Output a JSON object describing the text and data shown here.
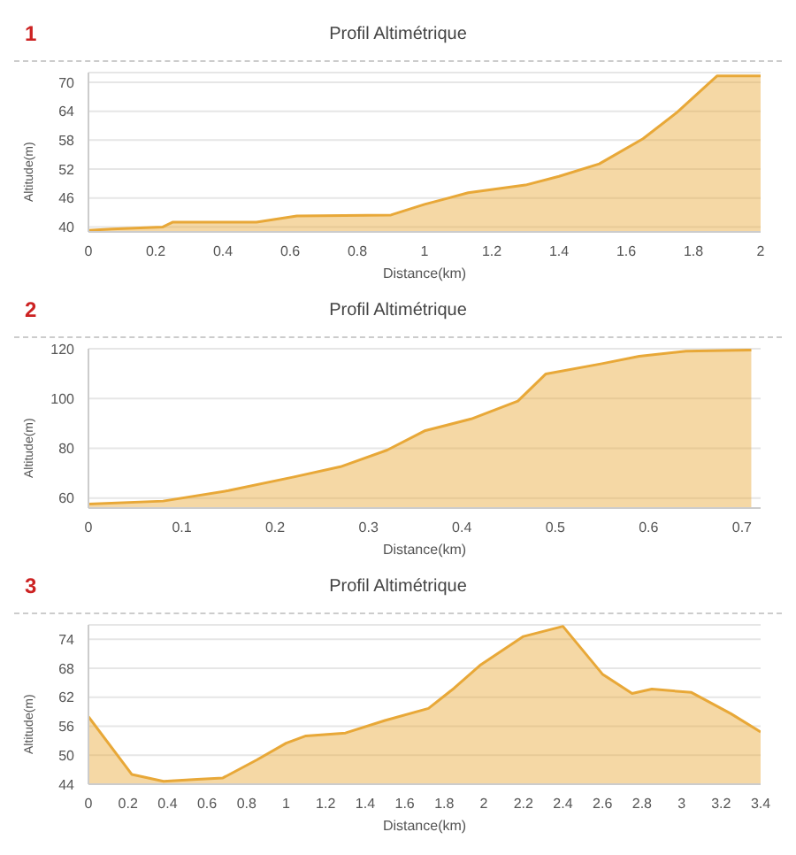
{
  "chart_data": [
    {
      "type": "area",
      "title": "Profil Altimétrique",
      "annotations": [
        "1"
      ],
      "xlabel": "Distance(km)",
      "ylabel": "Altitude(m)",
      "color": "#e8a838",
      "grid": "y",
      "marker": "none",
      "x": [
        0,
        0.07,
        0.22,
        0.25,
        0.5,
        0.62,
        0.9,
        1.0,
        1.13,
        1.3,
        1.4,
        1.52,
        1.65,
        1.75,
        1.87,
        2.0
      ],
      "values": [
        39.3,
        39.6,
        40,
        41,
        41,
        42.3,
        42.5,
        44.7,
        47.1,
        48.7,
        50.5,
        53.1,
        58.3,
        63.7,
        71.3,
        71.3
      ],
      "xlim": [
        0,
        2
      ],
      "xticks": [
        0,
        0.2,
        0.4,
        0.6,
        0.8,
        1,
        1.2,
        1.4,
        1.6,
        1.8,
        2
      ],
      "ylim": [
        39,
        72
      ],
      "yticks": [
        40,
        46,
        52,
        58,
        64,
        70
      ]
    },
    {
      "type": "area",
      "title": "Profil Altimétrique",
      "annotations": [
        "2"
      ],
      "xlabel": "Distance(km)",
      "ylabel": "Altitude(m)",
      "color": "#e8a838",
      "grid": "y",
      "marker": "none",
      "x": [
        0,
        0.08,
        0.15,
        0.22,
        0.27,
        0.32,
        0.36,
        0.41,
        0.46,
        0.49,
        0.55,
        0.59,
        0.64,
        0.71
      ],
      "values": [
        57.6,
        58.8,
        63,
        68.5,
        72.6,
        79.3,
        87,
        91.8,
        99,
        109.9,
        114,
        117,
        119,
        119.5
      ],
      "xlim": [
        0,
        0.72
      ],
      "xticks": [
        0,
        0.1,
        0.2,
        0.3,
        0.4,
        0.5,
        0.6,
        0.7
      ],
      "ylim": [
        56,
        120
      ],
      "yticks": [
        60,
        80,
        100,
        120
      ]
    },
    {
      "type": "area",
      "title": "Profil Altimétrique",
      "annotations": [
        "3"
      ],
      "xlabel": "Distance(km)",
      "ylabel": "Altitude(m)",
      "color": "#e8a838",
      "grid": "y",
      "marker": "none",
      "x": [
        0,
        0.22,
        0.38,
        0.55,
        0.68,
        0.85,
        1.0,
        1.1,
        1.3,
        1.5,
        1.72,
        1.85,
        1.98,
        2.2,
        2.4,
        2.6,
        2.75,
        2.85,
        3.05,
        3.25,
        3.4
      ],
      "values": [
        58,
        46,
        44.6,
        45,
        45.3,
        49,
        52.5,
        54,
        54.6,
        57.2,
        59.7,
        63.9,
        68.6,
        74.6,
        76.7,
        66.8,
        62.8,
        63.7,
        63,
        58.6,
        54.8
      ],
      "xlim": [
        0,
        3.4
      ],
      "xticks": [
        0,
        0.2,
        0.4,
        0.6,
        0.8,
        1,
        1.2,
        1.4,
        1.6,
        1.8,
        2,
        2.2,
        2.4,
        2.6,
        2.8,
        3,
        3.2,
        3.4
      ],
      "ylim": [
        44,
        77
      ],
      "yticks": [
        44,
        50,
        56,
        62,
        68,
        74
      ]
    }
  ]
}
